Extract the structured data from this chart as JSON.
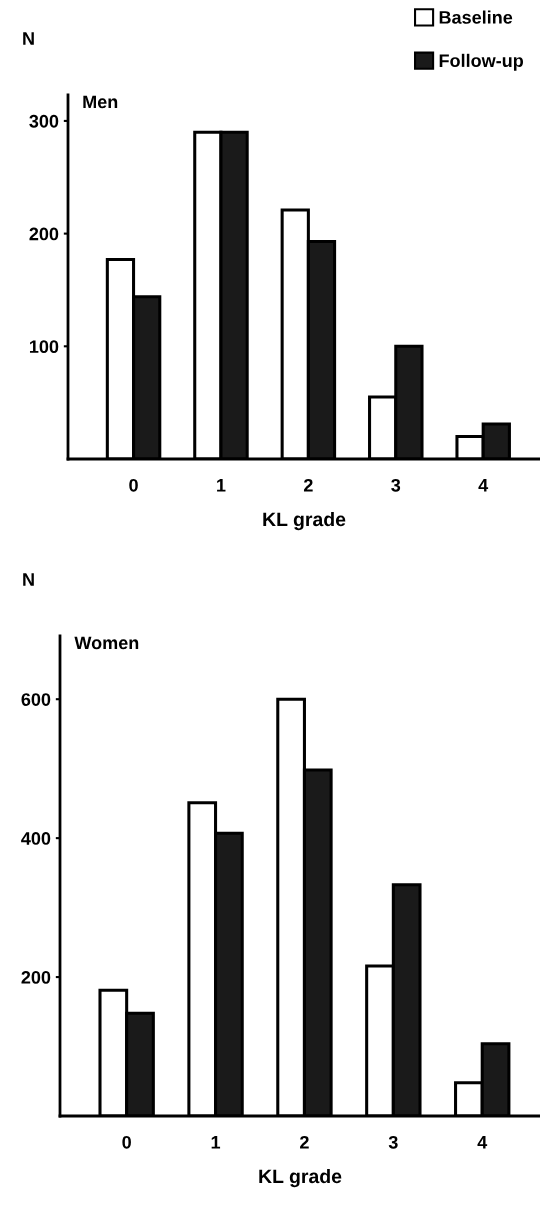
{
  "chart_data": [
    {
      "type": "bar",
      "title": "Men",
      "ylabel": "N",
      "xlabel": "KL grade",
      "categories": [
        "0",
        "1",
        "2",
        "3",
        "4"
      ],
      "ylim": [
        0,
        323
      ],
      "yticks": [
        100,
        200,
        300
      ],
      "legend": "top right",
      "grid": false,
      "series": [
        {
          "name": "Baseline",
          "color": "#ffffff",
          "values": [
            177,
            290,
            221,
            55,
            20
          ]
        },
        {
          "name": "Follow-up",
          "color": "#1a1a1a",
          "values": [
            144,
            290,
            193,
            100,
            31
          ]
        }
      ]
    },
    {
      "type": "bar",
      "title": "Women",
      "ylabel": "N",
      "xlabel": "KL grade",
      "categories": [
        "0",
        "1",
        "2",
        "3",
        "4"
      ],
      "ylim": [
        0,
        691
      ],
      "yticks": [
        200,
        400,
        600
      ],
      "grid": false,
      "series": [
        {
          "color": "#ffffff",
          "values": [
            181,
            451,
            600,
            216,
            48
          ]
        },
        {
          "color": "#1a1a1a",
          "values": [
            148,
            407,
            498,
            333,
            104
          ]
        }
      ]
    }
  ]
}
